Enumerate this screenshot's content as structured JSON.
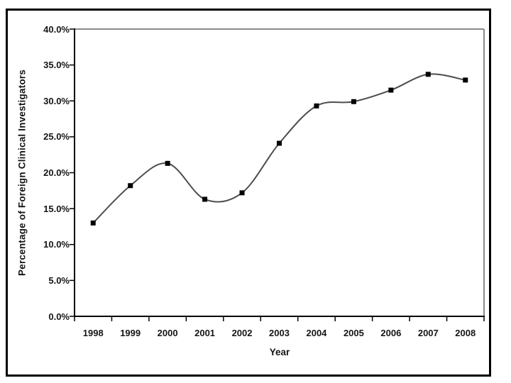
{
  "figure": {
    "background_color": "#ffffff",
    "outer_border_color": "#000000"
  },
  "chart_data": {
    "type": "line",
    "title": "",
    "xlabel": "Year",
    "ylabel": "Percentage of Foreign Clinical Investigators",
    "categories": [
      "1998",
      "1999",
      "2000",
      "2001",
      "2002",
      "2003",
      "2004",
      "2005",
      "2006",
      "2007",
      "2008"
    ],
    "values": [
      13.0,
      18.2,
      21.3,
      16.3,
      17.2,
      24.1,
      29.3,
      29.9,
      31.5,
      33.7,
      32.9
    ],
    "ylim": [
      0,
      40
    ],
    "y_tick_labels": [
      "0.0%",
      "5.0%",
      "10.0%",
      "15.0%",
      "20.0%",
      "25.0%",
      "30.0%",
      "35.0%",
      "40.0%"
    ],
    "grid": false,
    "legend": "none",
    "smooth_line": true,
    "marker": "square",
    "colors": {
      "line": "#4d4d4d",
      "marker": "#000000",
      "axis": "#000000",
      "plot_border": "#8a8a8a",
      "text": "#151515"
    }
  }
}
